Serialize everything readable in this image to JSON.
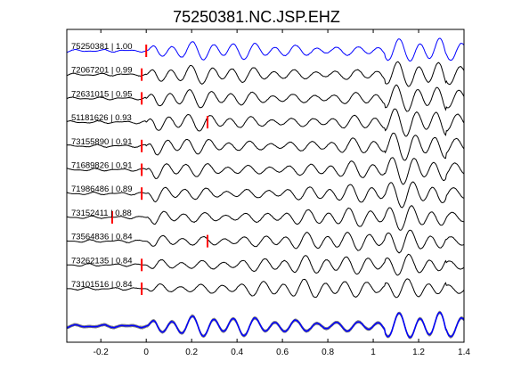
{
  "chart_data": {
    "type": "line",
    "title": "75250381.NC.JSP.EHZ",
    "xlabel": "",
    "ylabel": "",
    "xlim": [
      -0.35,
      1.4
    ],
    "x_ticks": [
      -0.2,
      0,
      0.2,
      0.4,
      0.6,
      0.8,
      1,
      1.2,
      1.4
    ],
    "x_tick_labels": [
      "-0.2",
      "0",
      "0.2",
      "0.4",
      "0.6",
      "0.8",
      "1",
      "1.2",
      "1.4"
    ],
    "grid": false,
    "colors": {
      "reference_trace": "#0000ff",
      "correlated_trace": "#000000",
      "pick_marker": "#ff0000",
      "stack_members": "#808080",
      "stack_reference": "#0000ff"
    },
    "traces": [
      {
        "label": "75250381 | 1.00",
        "event_id": "75250381",
        "correlation": 1.0,
        "pick_time": 0.0,
        "reference": true
      },
      {
        "label": "72067201 | 0.99",
        "event_id": "72067201",
        "correlation": 0.99,
        "pick_time": -0.02
      },
      {
        "label": "72631015 | 0.95",
        "event_id": "72631015",
        "correlation": 0.95,
        "pick_time": -0.02
      },
      {
        "label": "51181626 | 0.93",
        "event_id": "51181626",
        "correlation": 0.93,
        "pick_time": 0.27
      },
      {
        "label": "73155890 | 0.91",
        "event_id": "73155890",
        "correlation": 0.91,
        "pick_time": -0.02
      },
      {
        "label": "71689826 | 0.91",
        "event_id": "71689826",
        "correlation": 0.91,
        "pick_time": -0.02
      },
      {
        "label": "71986486 | 0.89",
        "event_id": "71986486",
        "correlation": 0.89,
        "pick_time": -0.02
      },
      {
        "label": "73152411 | 0.88",
        "event_id": "73152411",
        "correlation": 0.88,
        "pick_time": -0.15
      },
      {
        "label": "73564836 | 0.84",
        "event_id": "73564836",
        "correlation": 0.84,
        "pick_time": 0.27
      },
      {
        "label": "73262135 | 0.84",
        "event_id": "73262135",
        "correlation": 0.84,
        "pick_time": -0.02
      },
      {
        "label": "73101516 | 0.84",
        "event_id": "73101516",
        "correlation": 0.84,
        "pick_time": -0.02
      }
    ],
    "stack": {
      "overlay_count": 11
    }
  }
}
